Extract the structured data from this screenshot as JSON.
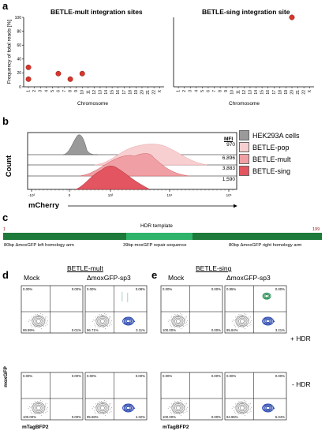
{
  "panel_a": {
    "letter": "a",
    "title_left": "BETLE-mult integration sites",
    "title_right": "BETLE-sing integration site",
    "ylabel": "Frequency of total reads [%]",
    "xlabel_left": "Chromosome",
    "xlabel_right": "Chromosome",
    "colors": {
      "dot": "#d9352a"
    }
  },
  "chart_data": [
    {
      "type": "scatter",
      "title": "BETLE-mult integration sites",
      "xlabel": "Chromosome",
      "ylabel": "Frequency of total reads [%]",
      "categories": [
        "1",
        "2",
        "3",
        "4",
        "5",
        "6",
        "7",
        "8",
        "9",
        "10",
        "11",
        "12",
        "13",
        "14",
        "15",
        "16",
        "17",
        "18",
        "19",
        "20",
        "21",
        "22",
        "X"
      ],
      "ylim": [
        0,
        100
      ],
      "yticks": [
        "0",
        "20",
        "40",
        "60",
        "80",
        "100"
      ],
      "points": [
        {
          "x": "1",
          "y": 28
        },
        {
          "x": "1",
          "y": 11
        },
        {
          "x": "6",
          "y": 19
        },
        {
          "x": "8",
          "y": 11
        },
        {
          "x": "10",
          "y": 19
        }
      ]
    },
    {
      "type": "scatter",
      "title": "BETLE-sing integration site",
      "xlabel": "Chromosome",
      "ylabel": "",
      "categories": [
        "1",
        "2",
        "3",
        "4",
        "5",
        "6",
        "7",
        "8",
        "9",
        "10",
        "11",
        "12",
        "13",
        "14",
        "15",
        "16",
        "17",
        "18",
        "19",
        "20",
        "21",
        "22",
        "X"
      ],
      "ylim": [
        0,
        100
      ],
      "points": [
        {
          "x": "20",
          "y": 100
        }
      ]
    },
    {
      "type": "area",
      "title": "",
      "xlabel": "mCherry",
      "ylabel": "Count",
      "mfi_header": "MFI",
      "xticks": [
        "-10³",
        "0",
        "10³",
        "10⁴",
        "10⁵"
      ],
      "series": [
        {
          "name": "HEK293A cells",
          "mfi": "970",
          "color": "#9a9a9a"
        },
        {
          "name": "BETLE-pop",
          "mfi": "6,896",
          "color": "#f8cfd0"
        },
        {
          "name": "BETLE-mult",
          "mfi": "3,883",
          "color": "#f0a0a5"
        },
        {
          "name": "BETLE-sing",
          "mfi": "1,590",
          "color": "#e35560"
        }
      ]
    }
  ],
  "panel_b": {
    "letter": "b",
    "ylabel": "Count",
    "xlabel": "mCherry",
    "mfi_header": "MFI",
    "xticks": [
      "-10³",
      "0",
      "10³",
      "10⁴",
      "10⁵"
    ],
    "legend": [
      {
        "name": "HEK293A cells",
        "mfi": "970",
        "color": "#9a9a9a"
      },
      {
        "name": "BETLE-pop",
        "mfi": "6,896",
        "color": "#f8cfd0"
      },
      {
        "name": "BETLE-mult",
        "mfi": "3,883",
        "color": "#f0a0a5"
      },
      {
        "name": "BETLE-sing",
        "mfi": "1,590",
        "color": "#e35560"
      }
    ]
  },
  "panel_c": {
    "letter": "c",
    "template_label": "HDR template",
    "start": "1",
    "end": "199",
    "left_arm": "80bp ΔmoxGFP left homology arm",
    "middle": "39bp moxGFP repair sequence",
    "right_arm": "80bp ΔmoxGFP right homology arm",
    "colors": {
      "arm": "#1d7a3a",
      "repair": "#2fb36a"
    }
  },
  "panel_d": {
    "letter": "d",
    "group": "BETLE-mult",
    "col1": "Mock",
    "col2": "ΔmoxGFP-sp3",
    "ylabel": "moxGFP",
    "xlabel": "mTagBFP2",
    "plots": [
      {
        "ul": "0.00%",
        "ur": "0.00%",
        "ll": "99.99%",
        "lr": "0.01%"
      },
      {
        "ul": "0.00%",
        "ur": "0.08%",
        "ll": "96.71%",
        "lr": "3.11%"
      },
      {
        "ul": "0.00%",
        "ur": "0.00%",
        "ll": "100.00%",
        "lr": "0.00%"
      },
      {
        "ul": "0.00%",
        "ur": "0.00%",
        "ll": "95.68%",
        "lr": "4.32%"
      }
    ]
  },
  "panel_e": {
    "letter": "e",
    "group": "BETLE-sing",
    "col1": "Mock",
    "col2": "ΔmoxGFP-sp3",
    "xlabel": "mTagBFP2",
    "row1": "+ HDR",
    "row2": "- HDR",
    "plots": [
      {
        "ul": "0.00%",
        "ur": "0.00%",
        "ll": "100.00%",
        "lr": "0.00%"
      },
      {
        "ul": "0.95%",
        "ur": "0.00%",
        "ll": "95.84%",
        "lr": "3.21%"
      },
      {
        "ul": "0.00%",
        "ur": "0.00%",
        "ll": "100.00%",
        "lr": "0.00%"
      },
      {
        "ul": "0.00%",
        "ur": "0.00%",
        "ll": "94.96%",
        "lr": "5.04%"
      }
    ]
  }
}
